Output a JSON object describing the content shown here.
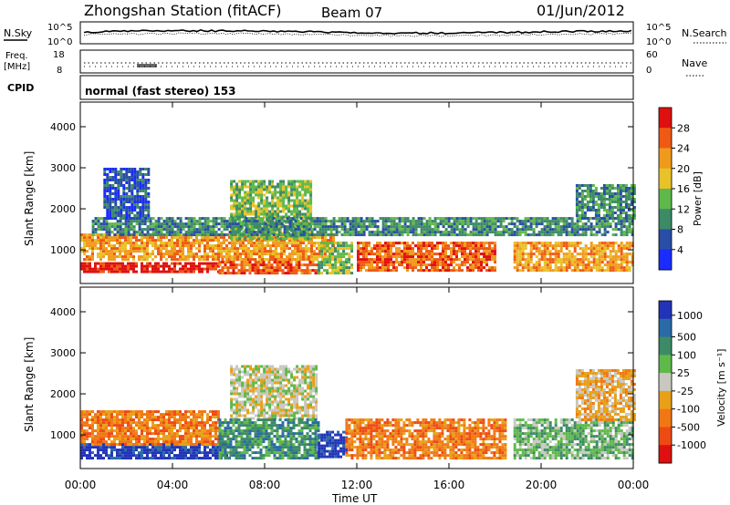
{
  "header": {
    "station": "Zhongshan Station (fitACF)",
    "beam": "Beam 07",
    "date": "01/Jun/2012"
  },
  "top_panels": {
    "nsky_label": "N.Sky",
    "nsearch_label": "N.Search",
    "nsky_ticks": [
      "10^5",
      "10^0"
    ],
    "nsky_right_ticks": [
      "10^5",
      "10^0"
    ],
    "freq_label": [
      "Freq.",
      "[MHz]"
    ],
    "freq_ticks": [
      "18",
      "8"
    ],
    "nave_ticks": [
      "60",
      "0"
    ],
    "nave_label": "Nave",
    "cpid_label": "CPID",
    "cpid_text": "normal (fast stereo) 153"
  },
  "axes": {
    "ylabel": "Slant Range [km]",
    "xlabel": "Time UT",
    "y_ticks": [
      "1000",
      "2000",
      "3000",
      "4000"
    ],
    "x_ticks": [
      "00:00",
      "04:00",
      "08:00",
      "12:00",
      "16:00",
      "20:00",
      "00:00"
    ]
  },
  "colorbars": {
    "power": {
      "label": "Power [dB]",
      "ticks": [
        "4",
        "8",
        "12",
        "16",
        "20",
        "24",
        "28"
      ],
      "colors": [
        "#1a2cff",
        "#2a4da6",
        "#3d8a66",
        "#5fb84a",
        "#e8c22a",
        "#f09a1c",
        "#ee5a14",
        "#e01010"
      ]
    },
    "velocity": {
      "label": "Velocity [m s⁻¹]",
      "ticks": [
        "1000",
        "500",
        "100",
        "25",
        "-25",
        "-100",
        "-500",
        "-1000"
      ],
      "colors": [
        "#2233b8",
        "#2a6aa6",
        "#3d8a66",
        "#5fb84a",
        "#c8c8c0",
        "#e8a018",
        "#f07814",
        "#ee4a14",
        "#e01010"
      ]
    }
  },
  "chart_data": [
    {
      "type": "heatmap",
      "name": "power",
      "xlabel": "Time UT",
      "ylabel": "Slant Range [km]",
      "xlim": [
        0,
        24
      ],
      "ylim": [
        180,
        4600
      ],
      "colorbar": "Power [dB]",
      "bands": [
        {
          "t0": 0.0,
          "t1": 6.0,
          "r0": 450,
          "r1": 700,
          "level": 7
        },
        {
          "t0": 6.0,
          "t1": 10.3,
          "r0": 450,
          "r1": 800,
          "level": 6
        },
        {
          "t0": 0.0,
          "t1": 11.0,
          "r0": 800,
          "r1": 1400,
          "level": 5
        },
        {
          "t0": 10.3,
          "t1": 11.8,
          "r0": 450,
          "r1": 1200,
          "level": 3
        },
        {
          "t0": 12.0,
          "t1": 18.0,
          "r0": 500,
          "r1": 1200,
          "level": 6
        },
        {
          "t0": 18.8,
          "t1": 24.0,
          "r0": 500,
          "r1": 1200,
          "level": 5
        },
        {
          "t0": 6.5,
          "t1": 10.0,
          "r0": 1300,
          "r1": 2700,
          "level": 3
        },
        {
          "t0": 0.5,
          "t1": 24.0,
          "r0": 1400,
          "r1": 1800,
          "level": 2
        },
        {
          "t0": 1.0,
          "t1": 3.0,
          "r0": 1800,
          "r1": 3000,
          "level": 1
        },
        {
          "t0": 21.5,
          "t1": 24.0,
          "r0": 1800,
          "r1": 2600,
          "level": 2
        }
      ]
    },
    {
      "type": "heatmap",
      "name": "velocity",
      "xlabel": "Time UT",
      "ylabel": "Slant Range [km]",
      "xlim": [
        0,
        24
      ],
      "ylim": [
        180,
        4600
      ],
      "colorbar": "Velocity [m s⁻¹]",
      "bands": [
        {
          "t0": 0.0,
          "t1": 6.5,
          "r0": 450,
          "r1": 800,
          "level": 0
        },
        {
          "t0": 0.0,
          "t1": 6.0,
          "r0": 800,
          "r1": 1600,
          "level": 6
        },
        {
          "t0": 6.5,
          "t1": 10.3,
          "r0": 1400,
          "r1": 2700,
          "level": 4
        },
        {
          "t0": 6.0,
          "t1": 10.3,
          "r0": 450,
          "r1": 1400,
          "level": 2
        },
        {
          "t0": 10.3,
          "t1": 11.5,
          "r0": 450,
          "r1": 1100,
          "level": 0
        },
        {
          "t0": 11.5,
          "t1": 18.5,
          "r0": 450,
          "r1": 1400,
          "level": 6
        },
        {
          "t0": 18.8,
          "t1": 24.0,
          "r0": 450,
          "r1": 1400,
          "level": 3
        },
        {
          "t0": 21.5,
          "t1": 24.0,
          "r0": 1400,
          "r1": 2600,
          "level": 5
        }
      ]
    }
  ]
}
